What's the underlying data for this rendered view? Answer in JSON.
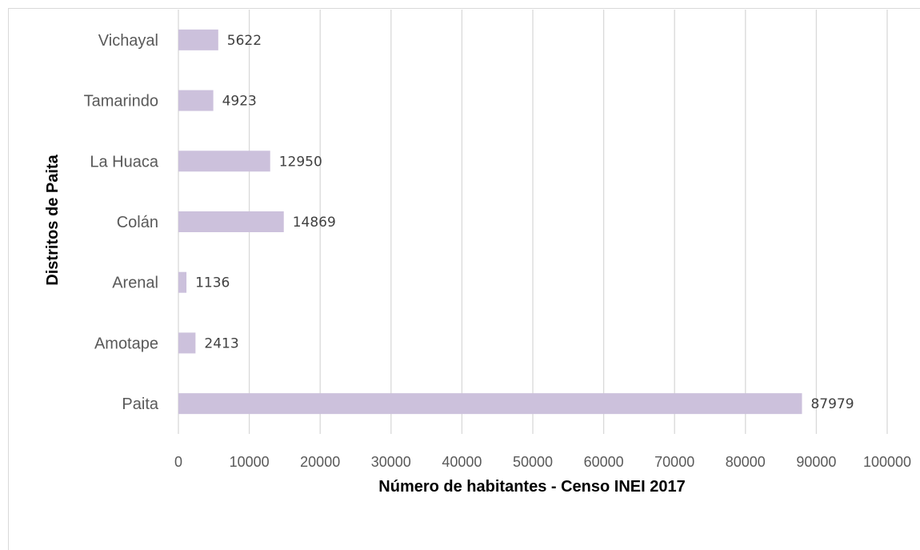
{
  "chart_data": {
    "type": "bar",
    "orientation": "horizontal",
    "categories": [
      "Paita",
      "Amotape",
      "Arenal",
      "Colán",
      "La Huaca",
      "Tamarindo",
      "Vichayal"
    ],
    "values": [
      87979,
      2413,
      1136,
      14869,
      12950,
      4923,
      5622
    ],
    "xlabel": "Número de habitantes - Censo INEI 2017",
    "ylabel": "Distritos de Paita",
    "xlim": [
      0,
      100000
    ],
    "xticks": [
      "0",
      "10000",
      "20000",
      "30000",
      "40000",
      "50000",
      "60000",
      "70000",
      "80000",
      "90000",
      "100000"
    ],
    "grid": true,
    "bar_color": "#ccc1dc"
  }
}
